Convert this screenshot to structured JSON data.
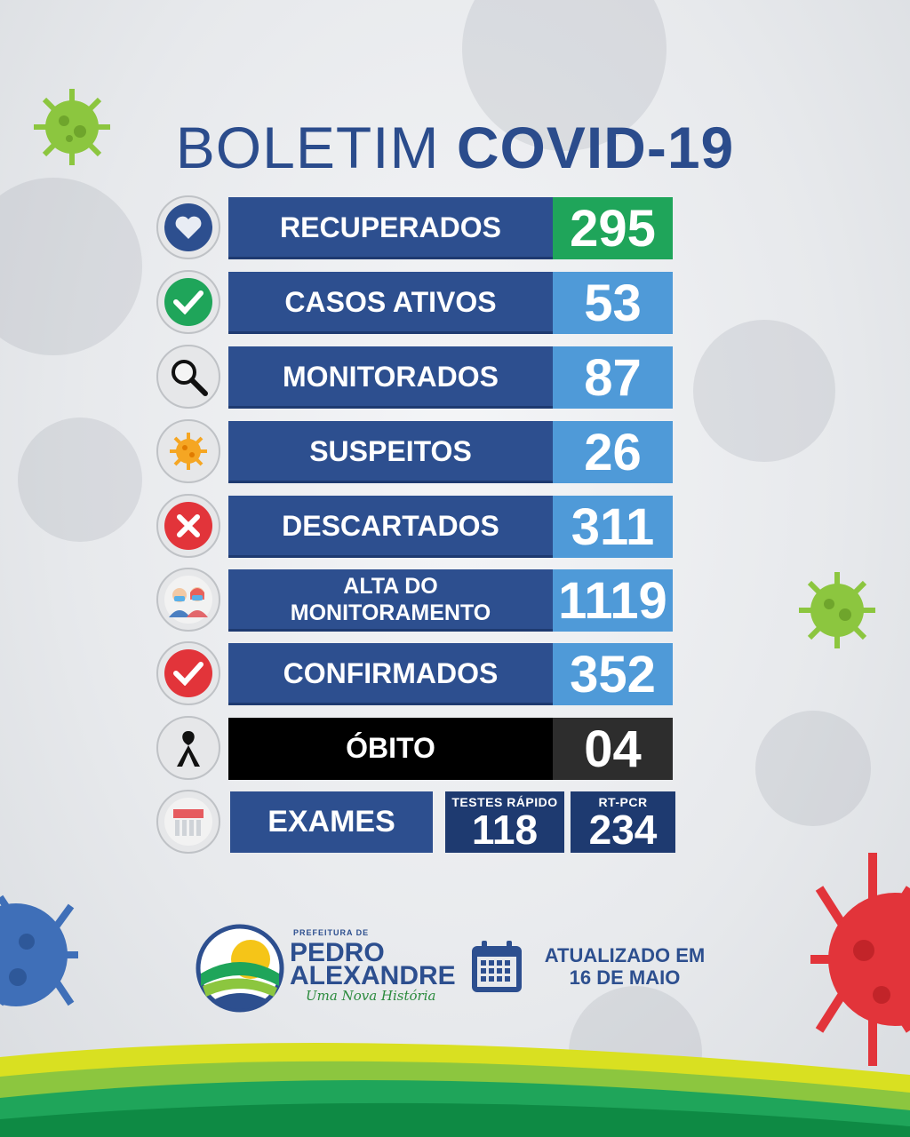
{
  "title": {
    "light": "BOLETIM",
    "bold": "COVID-19"
  },
  "rows": [
    {
      "label": "RECUPERADOS",
      "value": "295",
      "icon": "heart-icon"
    },
    {
      "label": "CASOS ATIVOS",
      "value": "53",
      "icon": "checkmark-icon"
    },
    {
      "label": "MONITORADOS",
      "value": "87",
      "icon": "magnifier-icon"
    },
    {
      "label": "SUSPEITOS",
      "value": "26",
      "icon": "virus-icon"
    },
    {
      "label": "DESCARTADOS",
      "value": "311",
      "icon": "x-icon"
    },
    {
      "label_line1": "ALTA DO",
      "label_line2": "MONITORAMENTO",
      "value": "1119",
      "icon": "masked-people-icon"
    },
    {
      "label": "CONFIRMADOS",
      "value": "352",
      "icon": "checkmark-icon"
    },
    {
      "label": "ÓBITO",
      "value": "04",
      "icon": "mourning-ribbon-icon"
    }
  ],
  "exams": {
    "label": "EXAMES",
    "icon": "test-tubes-icon",
    "rapid": {
      "caption": "TESTES RÁPIDO",
      "value": "118"
    },
    "pcr": {
      "caption": "RT-PCR",
      "value": "234"
    }
  },
  "brand": {
    "small": "PREFEITURA DE",
    "line1": "PEDRO",
    "line2": "ALEXANDRE",
    "slogan": "Uma Nova História"
  },
  "updated": {
    "line1": "ATUALIZADO EM",
    "line2": "16 DE MAIO",
    "icon": "calendar-icon"
  },
  "colors": {
    "navy": "#2d4f8f",
    "blue": "#4f9ad8",
    "green": "#1fa55a",
    "black": "#000000"
  }
}
